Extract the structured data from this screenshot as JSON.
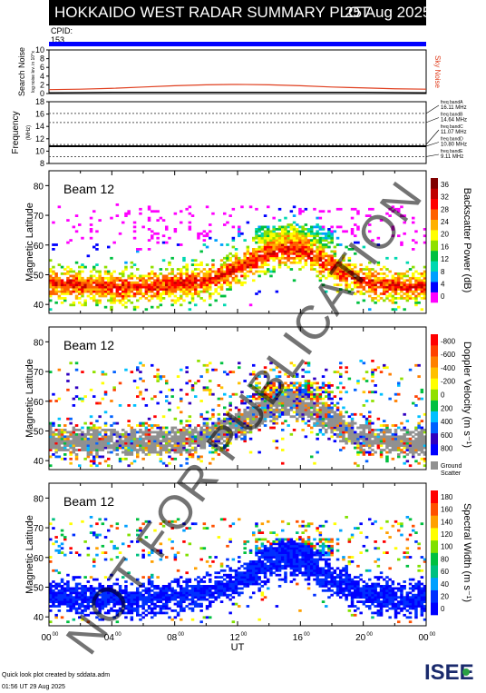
{
  "header": {
    "title": "HOKKAIDO WEST RADAR SUMMARY PLOT",
    "date": "25 Aug 2025"
  },
  "cpid": {
    "label": "CPID:",
    "value": "153"
  },
  "footer": {
    "line1": "Quick look plot created by sddata.adm",
    "line2": "01:56 UT 29 Aug 2025"
  },
  "logo": {
    "text": "ISEE"
  },
  "watermark": "NOT FOR PUBLICATION",
  "colors": {
    "sky_noise": "#e04020",
    "search_noise": "#000000",
    "cpid_bar": "#0000ff",
    "ground_scatter": "#909090",
    "freq_line": "#000000"
  },
  "chart_data": [
    {
      "type": "line",
      "panel": "noise",
      "ylabel": "Search Noise",
      "ylabel_unit": "log noise lev. in 10^x",
      "right_label": "Sky Noise",
      "ylim": [
        0,
        10
      ],
      "yticks": [
        "0",
        "2",
        "4",
        "6",
        "8",
        "10"
      ],
      "series": [
        {
          "name": "Sky Noise",
          "x": [
            0,
            2,
            4,
            6,
            8,
            10,
            12,
            14,
            16,
            18,
            20,
            22,
            24
          ],
          "values": [
            0.9,
            1.0,
            1.2,
            1.5,
            1.8,
            2.0,
            2.1,
            2.0,
            1.8,
            1.5,
            1.3,
            1.1,
            1.0
          ]
        },
        {
          "name": "Search Noise",
          "x": [
            0,
            4,
            8,
            12,
            16,
            20,
            24
          ],
          "values": [
            0.2,
            0.3,
            0.3,
            0.3,
            0.3,
            0.3,
            0.2
          ]
        }
      ]
    },
    {
      "type": "line",
      "panel": "frequency",
      "ylabel": "Frequency",
      "ylabel_unit": "(MHz)",
      "ylim": [
        8,
        18
      ],
      "yticks": [
        "8",
        "10",
        "12",
        "14",
        "16",
        "18"
      ],
      "bands": [
        {
          "name": "freq bandA",
          "value": "16.11 MHz",
          "mhz": 16.11
        },
        {
          "name": "freq bandB",
          "value": "14.64 MHz",
          "mhz": 14.64
        },
        {
          "name": "freq bandC",
          "value": "11.07 MHz",
          "mhz": 11.07
        },
        {
          "name": "freq bandD",
          "value": "10.80 MHz",
          "mhz": 10.8
        },
        {
          "name": "freq bandE",
          "value": "9.11 MHz",
          "mhz": 9.11
        }
      ],
      "series": [
        {
          "x": [
            0,
            24
          ],
          "values": [
            10.8,
            10.8
          ]
        }
      ]
    },
    {
      "type": "heatmap",
      "panel": "power",
      "beam_label": "Beam 12",
      "ylabel": "Magnetic Latitude",
      "ylim": [
        37,
        85
      ],
      "yticks": [
        "40",
        "50",
        "60",
        "70",
        "80"
      ],
      "colorbar": {
        "label": "Backscatter Power (dB)",
        "ticks": [
          "0",
          "4",
          "8",
          "12",
          "16",
          "20",
          "24",
          "28",
          "32",
          "36"
        ]
      }
    },
    {
      "type": "heatmap",
      "panel": "velocity",
      "beam_label": "Beam 12",
      "ylabel": "Magnetic Latitude",
      "ylim": [
        37,
        85
      ],
      "yticks": [
        "40",
        "50",
        "60",
        "70",
        "80"
      ],
      "colorbar": {
        "label": "Doppler Velocity (m s⁻¹)",
        "ticks": [
          "800",
          "600",
          "400",
          "200",
          "0",
          "-200",
          "-400",
          "-600",
          "-800"
        ],
        "gs_label_1": "Ground",
        "gs_label_2": "Scatter"
      }
    },
    {
      "type": "heatmap",
      "panel": "width",
      "beam_label": "Beam 12",
      "ylabel": "Magnetic Latitude",
      "xlabel": "UT",
      "ylim": [
        37,
        85
      ],
      "yticks": [
        "40",
        "50",
        "60",
        "70",
        "80"
      ],
      "xticks": [
        "00",
        "04",
        "08",
        "12",
        "16",
        "20",
        "00"
      ],
      "xtick_sup": "00",
      "colorbar": {
        "label": "Spectral Width (m s⁻¹)",
        "ticks": [
          "0",
          "20",
          "40",
          "60",
          "80",
          "100",
          "120",
          "140",
          "160",
          "180"
        ]
      }
    }
  ]
}
